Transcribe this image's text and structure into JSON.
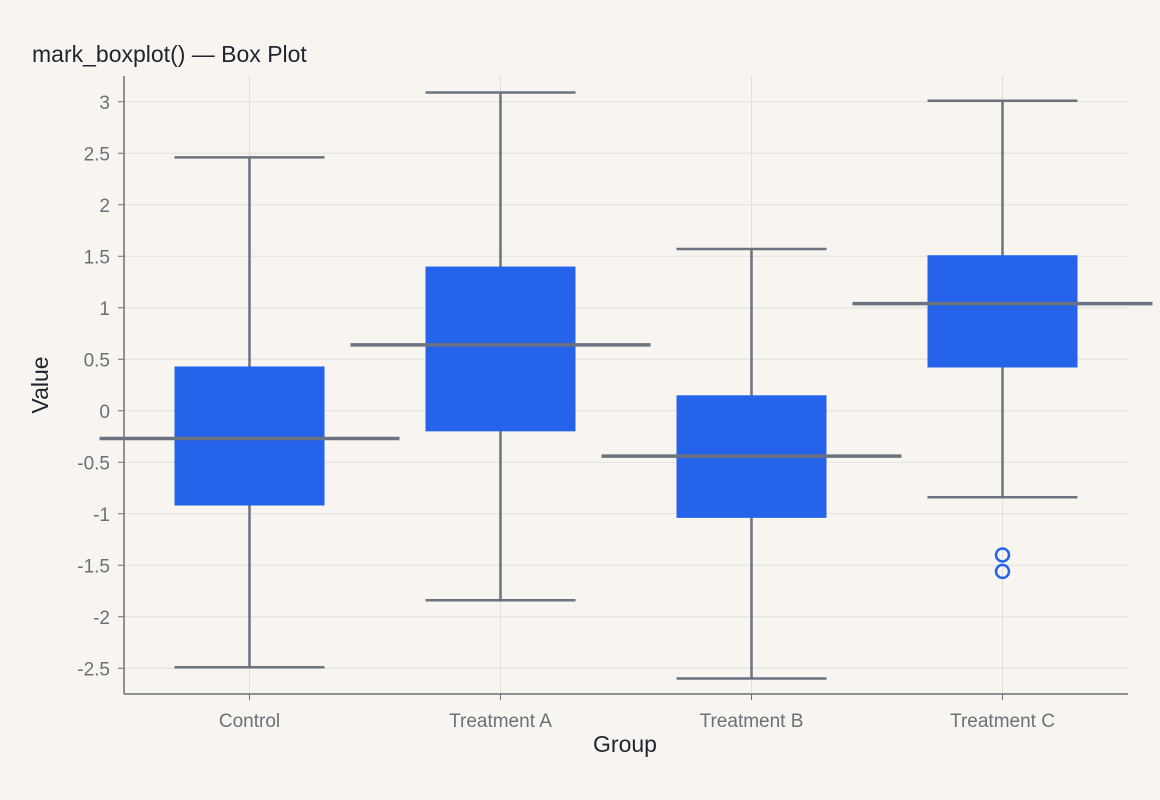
{
  "chart_data": {
    "type": "boxplot",
    "title": "mark_boxplot() — Box Plot",
    "xlabel": "Group",
    "ylabel": "Value",
    "categories": [
      "Control",
      "Treatment A",
      "Treatment B",
      "Treatment C"
    ],
    "ylim": [
      -2.75,
      3.25
    ],
    "yticks": [
      3,
      2.5,
      2,
      1.5,
      1,
      0.5,
      0,
      -0.5,
      -1,
      -1.5,
      -2,
      -2.5
    ],
    "ytick_labels": [
      "3",
      "2.5",
      "2",
      "1.5",
      "1",
      "0.5",
      "0",
      "-0.5",
      "-1",
      "-1.5",
      "-2",
      "-2.5"
    ],
    "grid": true,
    "boxes": [
      {
        "category": "Control",
        "min": -2.49,
        "q1": -0.92,
        "median": -0.27,
        "q3": 0.43,
        "max": 2.46,
        "outliers": []
      },
      {
        "category": "Treatment A",
        "min": -1.84,
        "q1": -0.2,
        "median": 0.64,
        "q3": 1.4,
        "max": 3.09,
        "outliers": []
      },
      {
        "category": "Treatment B",
        "min": -2.6,
        "q1": -1.04,
        "median": -0.44,
        "q3": 0.15,
        "max": 1.57,
        "outliers": []
      },
      {
        "category": "Treatment C",
        "min": -0.84,
        "q1": 0.42,
        "median": 1.04,
        "q3": 1.51,
        "max": 3.01,
        "outliers": [
          -1.4,
          -1.56
        ]
      }
    ],
    "colors": {
      "box": "#2563eb",
      "whisker": "#6b7280",
      "outlier": "#2563eb"
    }
  }
}
